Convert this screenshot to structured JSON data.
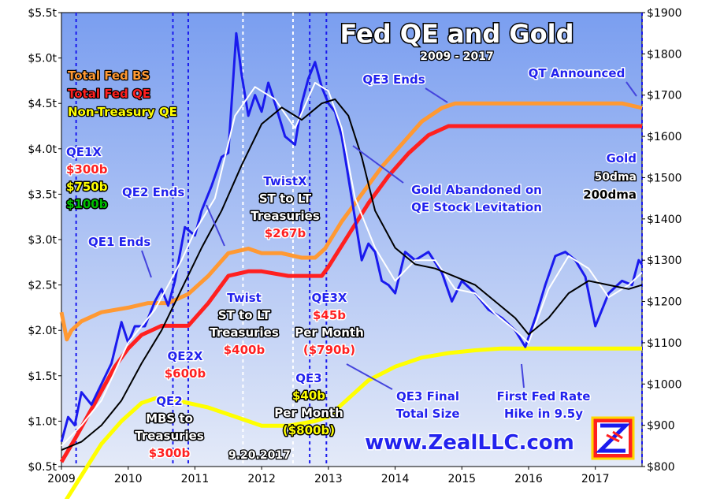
{
  "chart_data": {
    "type": "line",
    "title": "Fed QE and Gold",
    "subtitle": "2009 - 2017",
    "x_ticks": [
      "2009",
      "2010",
      "2011",
      "2012",
      "2013",
      "2014",
      "2015",
      "2016",
      "2017"
    ],
    "y_left_ticks": [
      "$0.5t",
      "$1.0t",
      "$1.5t",
      "$2.0t",
      "$2.5t",
      "$3.0t",
      "$3.5t",
      "$4.0t",
      "$4.5t",
      "$5.0t",
      "$5.5t"
    ],
    "y_right_ticks": [
      "$800",
      "$900",
      "$1000",
      "$1100",
      "$1200",
      "$1300",
      "$1400",
      "$1500",
      "$1600",
      "$1700",
      "$1800",
      "$1900"
    ],
    "ylim_left": [
      0.5,
      5.5
    ],
    "ylim_right": [
      800,
      1900
    ],
    "xlim": [
      2009.0,
      2017.7
    ],
    "legend": [
      {
        "label": "Total Fed BS",
        "color": "#ff9933"
      },
      {
        "label": "Total Fed QE",
        "color": "#ff2020"
      },
      {
        "label": "Non-Treasury QE",
        "color": "#ffff00"
      }
    ],
    "gold_legend": [
      "Gold",
      "50dma",
      "200dma"
    ],
    "series": [
      {
        "name": "Total Fed BS",
        "axis": "left",
        "color": "#ff9933",
        "x": [
          2009.0,
          2009.08,
          2009.15,
          2009.3,
          2009.6,
          2010.0,
          2010.3,
          2010.6,
          2010.9,
          2011.2,
          2011.5,
          2011.8,
          2012.0,
          2012.3,
          2012.6,
          2012.8,
          2012.95,
          2013.2,
          2013.5,
          2013.8,
          2014.1,
          2014.4,
          2014.7,
          2014.9,
          2015.2,
          2015.6,
          2016.0,
          2016.5,
          2017.0,
          2017.4,
          2017.7
        ],
        "values": [
          2.2,
          1.9,
          2.0,
          2.1,
          2.2,
          2.25,
          2.3,
          2.3,
          2.4,
          2.6,
          2.85,
          2.9,
          2.85,
          2.85,
          2.8,
          2.8,
          2.9,
          3.2,
          3.5,
          3.8,
          4.05,
          4.3,
          4.45,
          4.5,
          4.5,
          4.5,
          4.5,
          4.5,
          4.5,
          4.5,
          4.45
        ]
      },
      {
        "name": "Total Fed QE",
        "axis": "left",
        "color": "#ff2020",
        "x": [
          2009.0,
          2009.2,
          2009.5,
          2009.8,
          2010.0,
          2010.2,
          2010.5,
          2010.7,
          2010.9,
          2011.2,
          2011.5,
          2011.8,
          2012.0,
          2012.4,
          2012.7,
          2012.9,
          2013.0,
          2013.3,
          2013.6,
          2013.9,
          2014.2,
          2014.5,
          2014.8,
          2015.0,
          2015.5,
          2016.0,
          2016.5,
          2017.0,
          2017.7
        ],
        "values": [
          0.55,
          0.8,
          1.2,
          1.6,
          1.8,
          1.95,
          2.05,
          2.05,
          2.05,
          2.3,
          2.6,
          2.65,
          2.65,
          2.6,
          2.6,
          2.6,
          2.7,
          3.05,
          3.4,
          3.7,
          3.95,
          4.15,
          4.25,
          4.25,
          4.25,
          4.25,
          4.25,
          4.25,
          4.25
        ]
      },
      {
        "name": "Non-Treasury QE",
        "axis": "left",
        "color": "#ffff00",
        "x": [
          2009.0,
          2009.3,
          2009.6,
          2009.9,
          2010.2,
          2010.4,
          2010.6,
          2010.9,
          2011.2,
          2011.6,
          2012.0,
          2012.4,
          2012.8,
          2013.0,
          2013.3,
          2013.6,
          2014.0,
          2014.4,
          2014.8,
          2015.2,
          2015.6,
          2016.0,
          2016.5,
          2017.0,
          2017.7
        ],
        "values": [
          0.05,
          0.4,
          0.75,
          1.0,
          1.2,
          1.25,
          1.25,
          1.2,
          1.15,
          1.05,
          0.95,
          0.95,
          1.0,
          1.05,
          1.25,
          1.45,
          1.6,
          1.7,
          1.75,
          1.78,
          1.8,
          1.8,
          1.8,
          1.8,
          1.8
        ]
      },
      {
        "name": "Gold",
        "axis": "right",
        "color": "#1a1aee",
        "x": [
          2009.0,
          2009.1,
          2009.2,
          2009.3,
          2009.45,
          2009.6,
          2009.75,
          2009.9,
          2010.0,
          2010.1,
          2010.25,
          2010.4,
          2010.5,
          2010.6,
          2010.7,
          2010.85,
          2011.0,
          2011.1,
          2011.25,
          2011.4,
          2011.5,
          2011.62,
          2011.7,
          2011.8,
          2011.9,
          2012.0,
          2012.1,
          2012.2,
          2012.35,
          2012.5,
          2012.6,
          2012.7,
          2012.8,
          2012.9,
          2013.0,
          2013.1,
          2013.2,
          2013.3,
          2013.4,
          2013.5,
          2013.6,
          2013.7,
          2013.8,
          2013.9,
          2014.0,
          2014.15,
          2014.3,
          2014.5,
          2014.7,
          2014.85,
          2015.0,
          2015.2,
          2015.4,
          2015.6,
          2015.8,
          2015.95,
          2016.1,
          2016.25,
          2016.4,
          2016.55,
          2016.7,
          2016.85,
          2017.0,
          2017.2,
          2017.4,
          2017.55,
          2017.65,
          2017.7
        ],
        "values": [
          860,
          920,
          900,
          980,
          950,
          1000,
          1050,
          1150,
          1100,
          1140,
          1140,
          1200,
          1230,
          1190,
          1250,
          1380,
          1360,
          1420,
          1480,
          1550,
          1560,
          1850,
          1750,
          1650,
          1700,
          1660,
          1730,
          1680,
          1600,
          1580,
          1680,
          1740,
          1780,
          1720,
          1680,
          1660,
          1600,
          1500,
          1400,
          1300,
          1340,
          1320,
          1250,
          1240,
          1220,
          1320,
          1300,
          1320,
          1270,
          1200,
          1250,
          1220,
          1180,
          1160,
          1130,
          1090,
          1160,
          1240,
          1310,
          1320,
          1300,
          1260,
          1140,
          1220,
          1250,
          1240,
          1300,
          1290
        ]
      },
      {
        "name": "50dma",
        "axis": "right",
        "color": "#ffffff",
        "x": [
          2009.0,
          2009.3,
          2009.6,
          2010.0,
          2010.4,
          2010.8,
          2011.0,
          2011.3,
          2011.6,
          2011.9,
          2012.2,
          2012.5,
          2012.8,
          2013.0,
          2013.2,
          2013.4,
          2013.7,
          2014.0,
          2014.3,
          2014.6,
          2014.9,
          2015.2,
          2015.5,
          2015.8,
          2016.0,
          2016.3,
          2016.6,
          2016.9,
          2017.2,
          2017.5,
          2017.7
        ],
        "values": [
          850,
          900,
          960,
          1100,
          1180,
          1300,
          1370,
          1450,
          1650,
          1720,
          1690,
          1620,
          1730,
          1710,
          1620,
          1450,
          1330,
          1250,
          1300,
          1300,
          1230,
          1220,
          1170,
          1130,
          1100,
          1230,
          1310,
          1280,
          1210,
          1240,
          1270
        ]
      },
      {
        "name": "200dma",
        "axis": "right",
        "color": "#000000",
        "x": [
          2009.0,
          2009.3,
          2009.6,
          2009.9,
          2010.2,
          2010.5,
          2010.8,
          2011.1,
          2011.4,
          2011.7,
          2012.0,
          2012.3,
          2012.6,
          2012.9,
          2013.1,
          2013.3,
          2013.5,
          2013.7,
          2014.0,
          2014.3,
          2014.6,
          2014.9,
          2015.2,
          2015.5,
          2015.8,
          2016.0,
          2016.3,
          2016.6,
          2016.9,
          2017.2,
          2017.5,
          2017.7
        ],
        "values": [
          840,
          860,
          900,
          960,
          1050,
          1130,
          1230,
          1330,
          1420,
          1530,
          1630,
          1670,
          1640,
          1680,
          1690,
          1650,
          1550,
          1420,
          1330,
          1290,
          1280,
          1260,
          1240,
          1200,
          1160,
          1120,
          1160,
          1220,
          1250,
          1240,
          1230,
          1240
        ]
      }
    ],
    "event_lines": [
      {
        "x": 2009.22,
        "color": "#1a1aee"
      },
      {
        "x": 2010.67,
        "color": "#1a1aee"
      },
      {
        "x": 2010.9,
        "color": "#1a1aee"
      },
      {
        "x": 2011.72,
        "color": "#ffffff"
      },
      {
        "x": 2012.47,
        "color": "#ffffff"
      },
      {
        "x": 2012.72,
        "color": "#1a1aee"
      },
      {
        "x": 2012.97,
        "color": "#1a1aee"
      },
      {
        "x": 2017.7,
        "color": "#1a1aee"
      }
    ],
    "annotations": [
      {
        "id": "qe1x",
        "lines": [
          {
            "text": "QE1X",
            "color": "blue"
          },
          {
            "text": "$300b",
            "color": "red"
          },
          {
            "text": "$750b",
            "color": "yellow"
          },
          {
            "text": "$100b",
            "color": "green"
          }
        ]
      },
      {
        "id": "qe1-ends",
        "lines": [
          {
            "text": "QE1 Ends",
            "color": "blue"
          }
        ]
      },
      {
        "id": "qe2-ends",
        "lines": [
          {
            "text": "QE2 Ends",
            "color": "blue"
          }
        ]
      },
      {
        "id": "qe2x",
        "lines": [
          {
            "text": "QE2X",
            "color": "blue"
          },
          {
            "text": "$600b",
            "color": "red"
          }
        ]
      },
      {
        "id": "qe2",
        "lines": [
          {
            "text": "QE2",
            "color": "blue"
          },
          {
            "text": "MBS to",
            "color": "white"
          },
          {
            "text": "Treasuries",
            "color": "white"
          },
          {
            "text": "$300b",
            "color": "red"
          }
        ]
      },
      {
        "id": "twist",
        "lines": [
          {
            "text": "Twist",
            "color": "blue"
          },
          {
            "text": "ST to LT",
            "color": "white"
          },
          {
            "text": "Treasuries",
            "color": "white"
          },
          {
            "text": "$400b",
            "color": "red"
          }
        ]
      },
      {
        "id": "twistx",
        "lines": [
          {
            "text": "TwistX",
            "color": "blue"
          },
          {
            "text": "ST to LT",
            "color": "white"
          },
          {
            "text": "Treasuries",
            "color": "white"
          },
          {
            "text": "$267b",
            "color": "red"
          }
        ]
      },
      {
        "id": "qe3x",
        "lines": [
          {
            "text": "QE3X",
            "color": "blue"
          },
          {
            "text": "$45b",
            "color": "red"
          },
          {
            "text": "Per Month",
            "color": "white"
          },
          {
            "text": "($790b)",
            "color": "red"
          }
        ]
      },
      {
        "id": "qe3",
        "lines": [
          {
            "text": "QE3",
            "color": "blue"
          },
          {
            "text": "$40b",
            "color": "yellow"
          },
          {
            "text": "Per Month",
            "color": "white"
          },
          {
            "text": "($800b)",
            "color": "yellow"
          }
        ]
      },
      {
        "id": "qe3-ends",
        "lines": [
          {
            "text": "QE3 Ends",
            "color": "blue"
          }
        ]
      },
      {
        "id": "qt-announced",
        "lines": [
          {
            "text": "QT Announced",
            "color": "blue"
          }
        ]
      },
      {
        "id": "gold-abandoned",
        "lines": [
          {
            "text": "Gold Abandoned on",
            "color": "blue"
          },
          {
            "text": "QE Stock Levitation",
            "color": "blue"
          }
        ]
      },
      {
        "id": "qe3-final",
        "lines": [
          {
            "text": "QE3 Final",
            "color": "blue"
          },
          {
            "text": "Total Size",
            "color": "blue"
          }
        ]
      },
      {
        "id": "first-rate-hike",
        "lines": [
          {
            "text": "First Fed Rate",
            "color": "blue"
          },
          {
            "text": "Hike in 9.5y",
            "color": "blue"
          }
        ]
      },
      {
        "id": "date-label",
        "lines": [
          {
            "text": "9.20.2017",
            "color": "white"
          }
        ]
      }
    ],
    "grid": false,
    "legend_position": "top-left"
  },
  "website": "www.ZealLLC.com",
  "colors": {
    "background_top": "#7a9ef0",
    "background_bottom": "#dfe6f8",
    "gold": "#1a1aee",
    "bs": "#ff9933",
    "qe": "#ff2020",
    "ntqe": "#ffff00"
  }
}
